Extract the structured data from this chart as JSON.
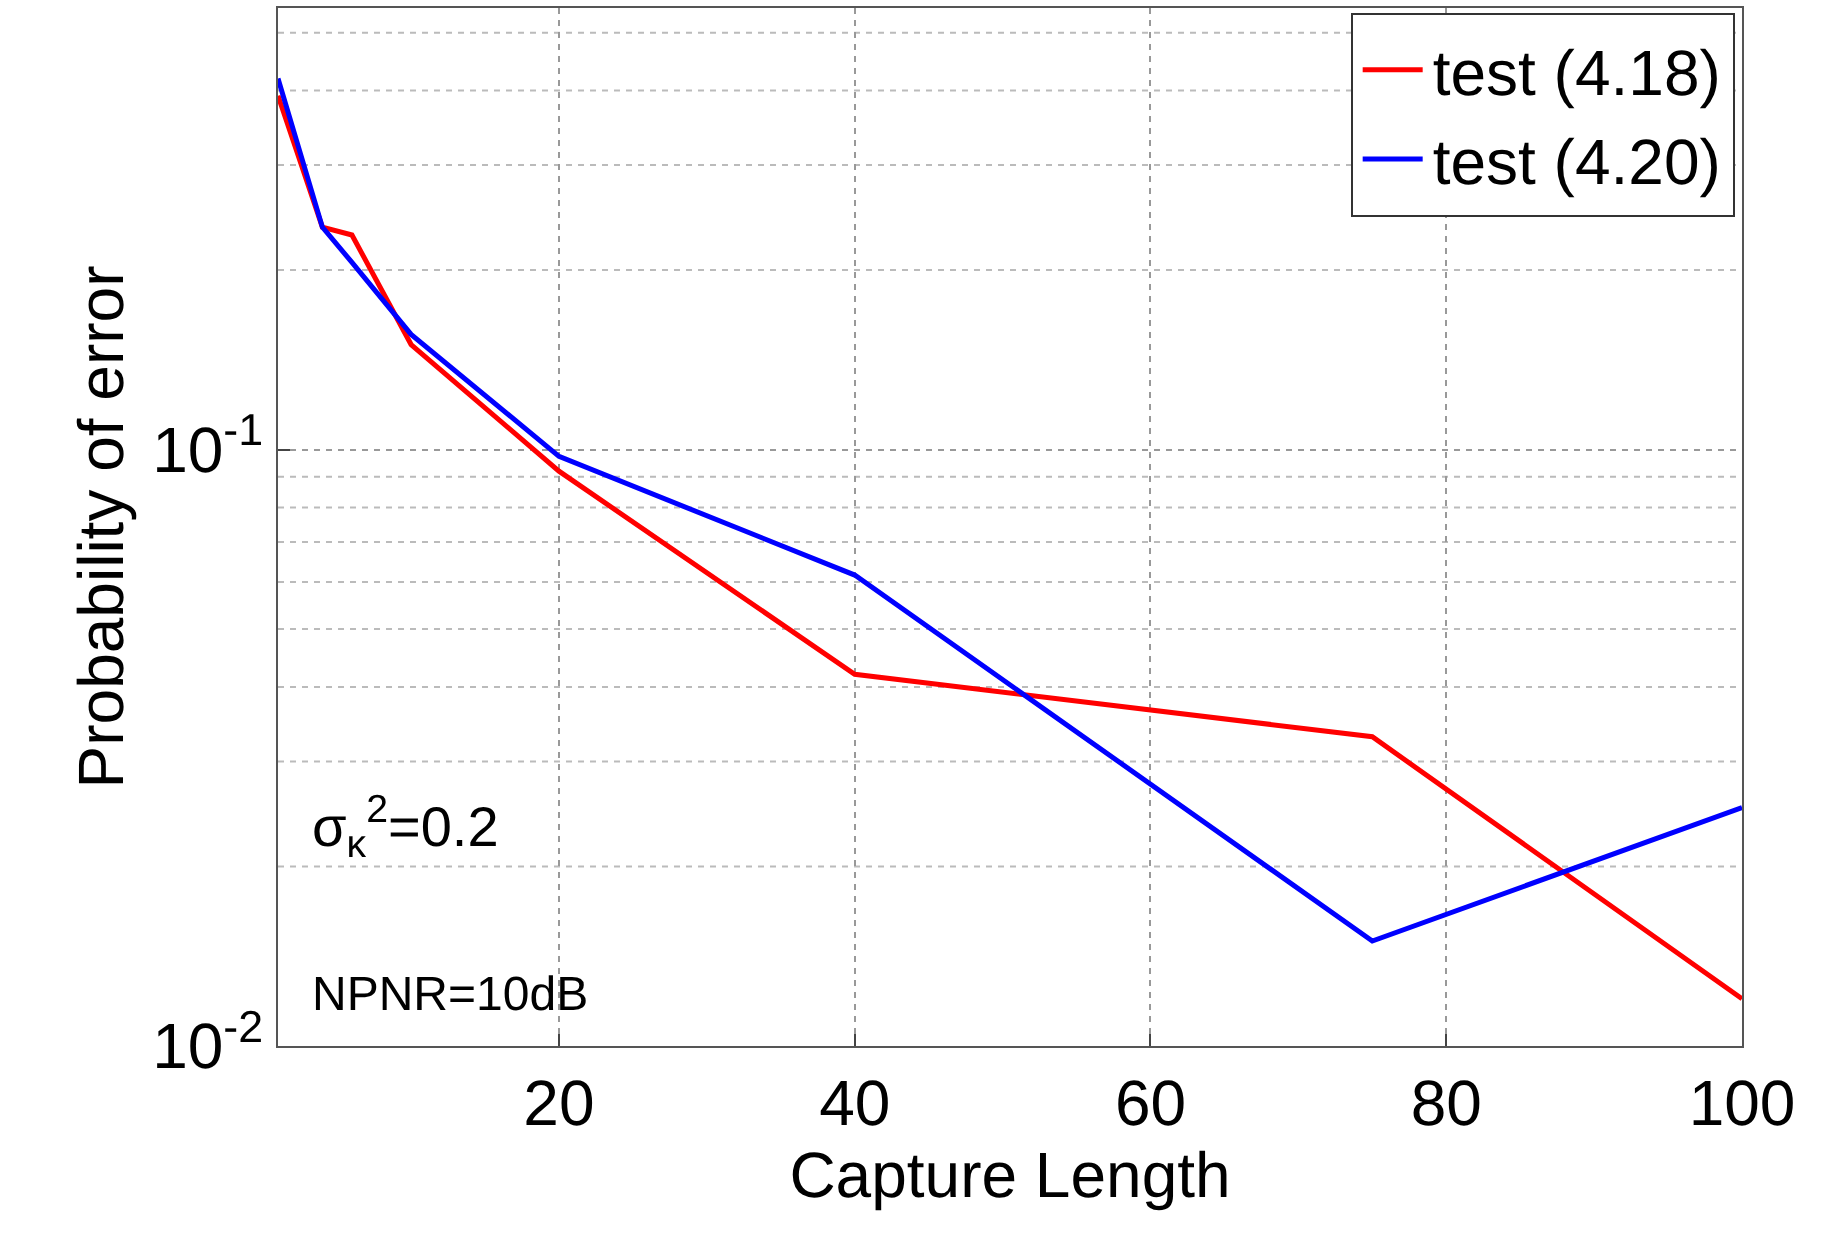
{
  "chart_data": {
    "type": "line",
    "xlabel": "Capture Length",
    "ylabel": "Probability of error",
    "series": [
      {
        "name": "test (4.18)",
        "color": "#ff0000",
        "x": [
          1,
          4,
          6,
          10,
          20,
          40,
          75,
          100
        ],
        "values": [
          0.392,
          0.236,
          0.229,
          0.15,
          0.092,
          0.042,
          0.033,
          0.012
        ]
      },
      {
        "name": "test (4.20)",
        "color": "#0000ff",
        "x": [
          1,
          4,
          6,
          10,
          20,
          40,
          75,
          100
        ],
        "values": [
          0.419,
          0.236,
          0.206,
          0.156,
          0.0974,
          0.0616,
          0.015,
          0.0251
        ]
      }
    ],
    "xlim": [
      1,
      100
    ],
    "xticks": [
      20,
      40,
      60,
      80,
      100
    ],
    "ylim": [
      0.01,
      0.55
    ],
    "yticks": [
      {
        "value": 0.01,
        "label": "10$^{-2}$"
      },
      {
        "value": 0.1,
        "label": "10$^{-1}$"
      }
    ],
    "log": "y",
    "grid": true,
    "legend": "top right",
    "line_style": "solid",
    "marker": "none",
    "annotations": [
      "σ$_{κ}$$^{2}$=0.2",
      "NPNR=10dB"
    ]
  }
}
